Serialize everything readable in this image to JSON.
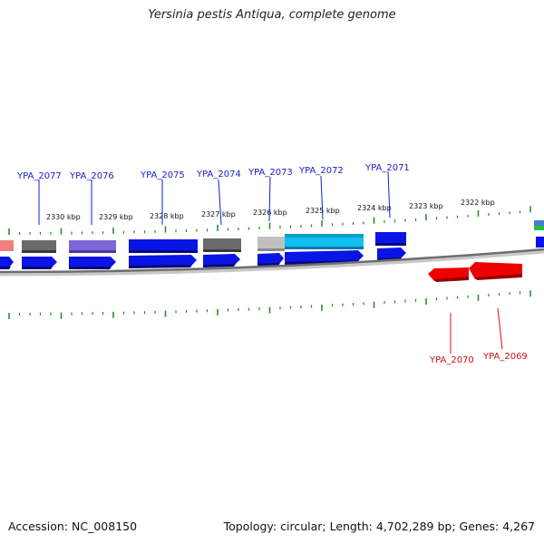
{
  "title": "Yersinia pestis Antiqua, complete genome",
  "footer": {
    "accession": "Accession: NC_008150",
    "summary": "Topology: circular; Length: 4,702,289 bp; Genes: 4,267"
  },
  "colors": {
    "forward_gene": "#0a14e6",
    "reverse_gene": "#ee0000",
    "forward_label": "#1a1acc",
    "reverse_label": "#d01010",
    "tick": "#1f8a1f",
    "backbone": "#777777"
  },
  "kbp_labels": [
    "2330 kbp",
    "2329 kbp",
    "2328 kbp",
    "2327 kbp",
    "2326 kbp",
    "2325 kbp",
    "2324 kbp",
    "2323 kbp",
    "2322 kbp"
  ],
  "forward_genes": [
    "YPA_2077",
    "YPA_2076",
    "YPA_2075",
    "YPA_2074",
    "YPA_2073",
    "YPA_2072",
    "YPA_2071"
  ],
  "reverse_genes": [
    "YPA_2070",
    "YPA_2069"
  ]
}
